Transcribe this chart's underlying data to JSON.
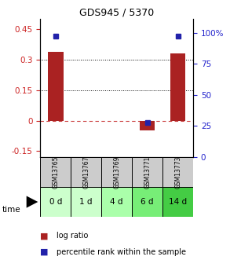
{
  "title": "GDS945 / 5370",
  "samples": [
    "GSM13765",
    "GSM13767",
    "GSM13769",
    "GSM13771",
    "GSM13773"
  ],
  "time_labels": [
    "0 d",
    "1 d",
    "4 d",
    "6 d",
    "14 d"
  ],
  "log_ratio": [
    0.34,
    0.0,
    0.0,
    -0.05,
    0.33
  ],
  "percentile_rank": [
    97,
    null,
    null,
    28,
    97
  ],
  "ylim_left": [
    -0.18,
    0.5
  ],
  "ylim_right": [
    0,
    111
  ],
  "yticks_left": [
    -0.15,
    0,
    0.15,
    0.3,
    0.45
  ],
  "yticks_right": [
    0,
    25,
    50,
    75,
    100
  ],
  "hlines": [
    0.15,
    0.3
  ],
  "bar_color": "#AA2222",
  "dot_color": "#2222AA",
  "time_colors": [
    "#ccffcc",
    "#ccffcc",
    "#aaffaa",
    "#77ee77",
    "#44cc44"
  ],
  "sample_bg": "#cccccc",
  "zero_line_color": "#CC4444",
  "grid_line_color": "#000000",
  "legend_bar_label": "log ratio",
  "legend_dot_label": "percentile rank within the sample",
  "bar_width": 0.5
}
